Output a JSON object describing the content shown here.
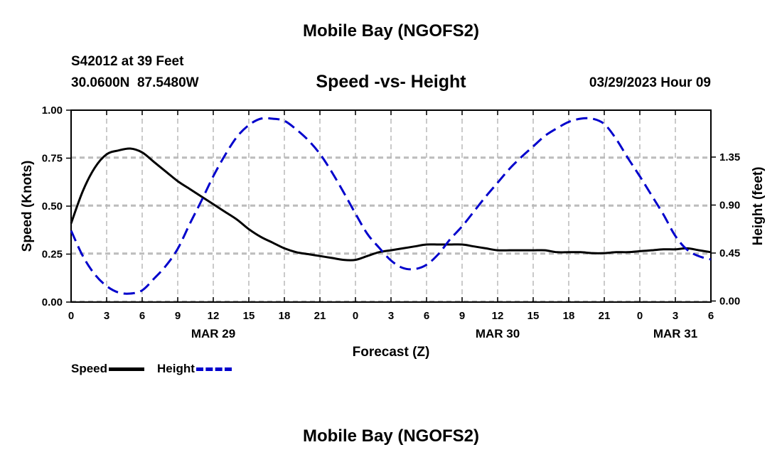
{
  "header": {
    "title_top": "Mobile Bay (NGOFS2)",
    "station_line": "S42012 at 39 Feet",
    "coords_line": "30.0600N  87.5480W",
    "plot_title": "Speed -vs- Height",
    "timestamp": "03/29/2023 Hour 09",
    "title_bottom": "Mobile Bay (NGOFS2)"
  },
  "legend": {
    "speed_label": "Speed",
    "height_label": "Height"
  },
  "colors": {
    "speed": "#000000",
    "height": "#0000cc",
    "grid": "#b8b8b8"
  },
  "chart_data": {
    "type": "line",
    "title": "Speed -vs- Height",
    "xlabel": "Forecast (Z)",
    "ylabel": "Speed (Knots)",
    "y2label": "Height (feet)",
    "x_unit": "hours since 03/29/2023 00Z",
    "x_range": [
      0,
      54
    ],
    "x_tick_labels": [
      "0",
      "3",
      "6",
      "9",
      "12",
      "15",
      "18",
      "21",
      "0",
      "3",
      "6",
      "9",
      "12",
      "15",
      "18",
      "21",
      "0",
      "3",
      "6"
    ],
    "date_labels": [
      {
        "label": "MAR 29",
        "at": 12
      },
      {
        "label": "MAR 30",
        "at": 36
      },
      {
        "label": "MAR 31",
        "at": 51
      }
    ],
    "ylim": [
      0,
      1.0
    ],
    "y_ticks": [
      "0.00",
      "0.25",
      "0.50",
      "0.75",
      "1.00"
    ],
    "y2lim": [
      -0.01,
      1.79
    ],
    "y2_ticks": [
      "0.00",
      "0.45",
      "0.90",
      "1.35"
    ],
    "grid": true,
    "legend_position": "bottom-left",
    "series": [
      {
        "name": "Speed",
        "axis": "left",
        "x": [
          0,
          1,
          2,
          3,
          4,
          5,
          6,
          7,
          8,
          9,
          10,
          11,
          12,
          13,
          14,
          15,
          16,
          17,
          18,
          19,
          20,
          21,
          22,
          23,
          24,
          25,
          26,
          27,
          28,
          29,
          30,
          31,
          32,
          33,
          34,
          35,
          36,
          37,
          38,
          39,
          40,
          41,
          42,
          43,
          44,
          45,
          46,
          47,
          48,
          49,
          50,
          51,
          52,
          53,
          54
        ],
        "values": [
          0.41,
          0.58,
          0.7,
          0.77,
          0.79,
          0.8,
          0.78,
          0.73,
          0.68,
          0.63,
          0.59,
          0.55,
          0.51,
          0.47,
          0.43,
          0.38,
          0.34,
          0.31,
          0.28,
          0.26,
          0.25,
          0.24,
          0.23,
          0.22,
          0.22,
          0.24,
          0.26,
          0.27,
          0.28,
          0.29,
          0.3,
          0.3,
          0.3,
          0.3,
          0.29,
          0.28,
          0.27,
          0.27,
          0.27,
          0.27,
          0.27,
          0.26,
          0.26,
          0.26,
          0.255,
          0.255,
          0.26,
          0.26,
          0.265,
          0.27,
          0.275,
          0.275,
          0.28,
          0.27,
          0.26
        ]
      },
      {
        "name": "Height",
        "axis": "right",
        "x": [
          0,
          1,
          2,
          3,
          4,
          5,
          6,
          7,
          8,
          9,
          10,
          11,
          12,
          13,
          14,
          15,
          16,
          17,
          18,
          19,
          20,
          21,
          22,
          23,
          24,
          25,
          26,
          27,
          28,
          29,
          30,
          31,
          32,
          33,
          34,
          35,
          36,
          37,
          38,
          39,
          40,
          41,
          42,
          43,
          44,
          45,
          46,
          47,
          48,
          49,
          50,
          51,
          52,
          53,
          54
        ],
        "values": [
          0.66,
          0.42,
          0.25,
          0.14,
          0.08,
          0.07,
          0.1,
          0.21,
          0.33,
          0.49,
          0.72,
          0.94,
          1.17,
          1.37,
          1.54,
          1.65,
          1.71,
          1.71,
          1.69,
          1.61,
          1.51,
          1.38,
          1.21,
          1.02,
          0.82,
          0.63,
          0.5,
          0.38,
          0.31,
          0.3,
          0.34,
          0.44,
          0.58,
          0.7,
          0.84,
          0.98,
          1.11,
          1.24,
          1.35,
          1.45,
          1.55,
          1.62,
          1.68,
          1.71,
          1.71,
          1.66,
          1.52,
          1.34,
          1.17,
          0.99,
          0.81,
          0.61,
          0.48,
          0.42,
          0.39
        ]
      }
    ]
  }
}
